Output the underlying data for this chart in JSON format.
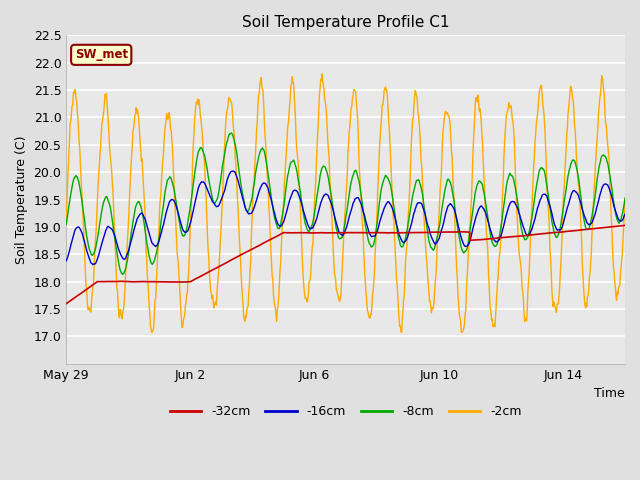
{
  "title": "Soil Temperature Profile C1",
  "xlabel": "Time",
  "ylabel": "Soil Temperature (C)",
  "ylim": [
    16.5,
    22.5
  ],
  "yticks": [
    17.0,
    17.5,
    18.0,
    18.5,
    19.0,
    19.5,
    20.0,
    20.5,
    21.0,
    21.5,
    22.0,
    22.5
  ],
  "background_color": "#e0e0e0",
  "plot_bg_color": "#e8e8e8",
  "grid_color": "#ffffff",
  "legend_label": "SW_met",
  "legend_text_color": "#8b0000",
  "legend_box_color": "#ffffcc",
  "legend_box_edge": "#8b0000",
  "series_colors": {
    "-32cm": "#cc0000",
    "-16cm": "#0000cc",
    "-8cm": "#00aa00",
    "-2cm": "#ffaa00"
  },
  "xtick_dates": [
    "May 29",
    "Jun 2",
    "Jun 6",
    "Jun 10",
    "Jun 14"
  ],
  "xtick_positions": [
    0,
    4,
    8,
    12,
    16
  ],
  "n_days": 18,
  "figsize": [
    6.4,
    4.8
  ],
  "dpi": 100
}
